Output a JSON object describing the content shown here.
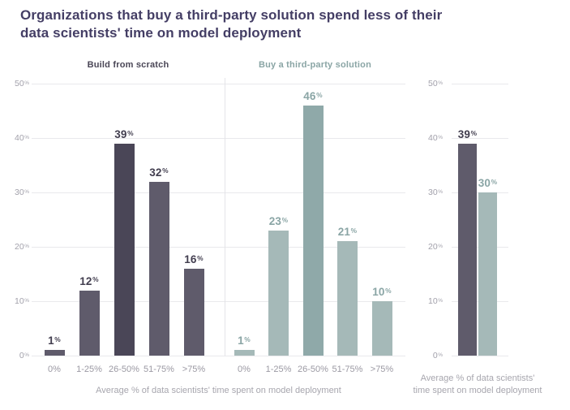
{
  "title": {
    "line1": "Organizations that buy a third-party solution spend less of their",
    "line2": "data scientists' time on model deployment"
  },
  "colors": {
    "title": "#443e65",
    "dark": "#5f5b6b",
    "dark_highlight": "#4a4657",
    "dark_label": "#423e4f",
    "teal": "#a5b9b8",
    "teal_highlight": "#8fa9a9",
    "teal_label": "#8aa5a5",
    "grid": "#e9e9ec",
    "tick": "#a2a1ab",
    "category": "#9b99a3",
    "caption": "#a7a6ae"
  },
  "axis": {
    "ticks": [
      0,
      10,
      20,
      30,
      40,
      50
    ],
    "unit": "%",
    "ylim": [
      0,
      50
    ],
    "grid": "on"
  },
  "captions": {
    "shared": "Average % of data scientists' time spent on model deployment"
  },
  "chart_data": [
    {
      "type": "bar",
      "title": "Build from scratch",
      "categories": [
        "0%",
        "1-25%",
        "26-50%",
        "51-75%",
        ">75%"
      ],
      "values": [
        1,
        12,
        39,
        32,
        16
      ],
      "highlight_index": 2,
      "palette": "dark",
      "ylim": [
        0,
        50
      ],
      "xlabel": "Average % of data scientists' time spent on model deployment"
    },
    {
      "type": "bar",
      "title": "Buy a third-party solution",
      "categories": [
        "0%",
        "1-25%",
        "26-50%",
        "51-75%",
        ">75%"
      ],
      "values": [
        1,
        23,
        46,
        21,
        10
      ],
      "highlight_index": 2,
      "palette": "teal",
      "ylim": [
        0,
        50
      ],
      "xlabel": "Average % of data scientists' time spent on model deployment"
    },
    {
      "type": "bar",
      "title": "",
      "categories": [
        "Build from scratch",
        "Buy a third-party solution"
      ],
      "values": [
        39,
        30
      ],
      "palette": [
        "dark",
        "teal"
      ],
      "ylim": [
        0,
        50
      ],
      "xlabel": "Average % of data scientists' time spent on model deployment",
      "xlabel_lines": [
        "Average % of data scientists'",
        "time spent on model deployment"
      ]
    }
  ]
}
